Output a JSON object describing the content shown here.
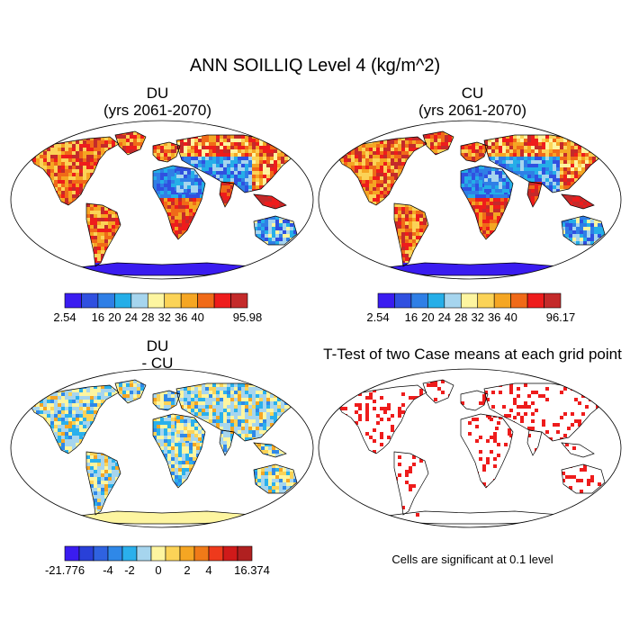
{
  "figure": {
    "title": "ANN SOILLIQ Level 4 (kg/m^2)"
  },
  "panels": [
    {
      "id": "du",
      "title_line1": "DU",
      "title_line2": "(yrs 2061-2070)",
      "colorbar": {
        "colors": [
          "#3a1cf0",
          "#3050e0",
          "#2f7fe6",
          "#25aee8",
          "#a6d5ee",
          "#fdf5a0",
          "#fbd357",
          "#f5a623",
          "#f06a18",
          "#ee1c1c",
          "#c42a2a"
        ],
        "tick_labels": [
          "2.54",
          "16",
          "20",
          "24",
          "28",
          "32",
          "36",
          "40",
          "95.98"
        ]
      }
    },
    {
      "id": "cu",
      "title_line1": "CU",
      "title_line2": "(yrs 2061-2070)",
      "colorbar": {
        "colors": [
          "#3a1cf0",
          "#3050e0",
          "#2f7fe6",
          "#25aee8",
          "#a6d5ee",
          "#fdf5a0",
          "#fbd357",
          "#f5a623",
          "#f06a18",
          "#ee1c1c",
          "#c42a2a"
        ],
        "tick_labels": [
          "2.54",
          "16",
          "20",
          "24",
          "28",
          "32",
          "36",
          "40",
          "96.17"
        ]
      }
    },
    {
      "id": "diff",
      "title_line1": "DU",
      "title_line2": "- CU",
      "colorbar": {
        "colors": [
          "#3a1cf0",
          "#2940d8",
          "#2f62e0",
          "#2f88e8",
          "#2ab0ec",
          "#a6d5ee",
          "#fdf5a0",
          "#fbd357",
          "#f5a623",
          "#f07a18",
          "#ee3a1c",
          "#d01a1a",
          "#b02020"
        ],
        "tick_labels": [
          "-21.776",
          "-4",
          "-2",
          "0",
          "2",
          "4",
          "16.374"
        ]
      }
    },
    {
      "id": "ttest",
      "title_line1": "T-Test of two Case means at each grid point",
      "footnote": "Cells are significant at 0.1 level"
    }
  ]
}
